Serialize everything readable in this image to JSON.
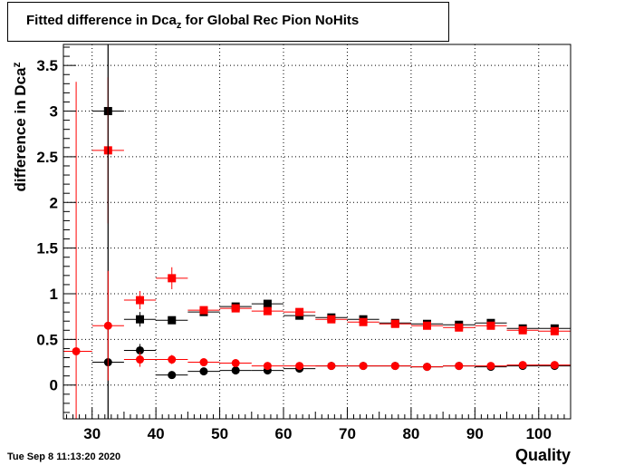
{
  "chart_data": {
    "type": "scatter",
    "title": "Fitted difference in Dca",
    "title_sub": "z",
    "title_suffix": " for Global Rec Pion NoHits",
    "xlabel": "Quality",
    "ylabel": "difference in Dca",
    "ylabel_sub": "z",
    "xlim": [
      25.5,
      105
    ],
    "ylim": [
      -0.37,
      3.73
    ],
    "x_ticks": [
      30,
      40,
      50,
      60,
      70,
      80,
      90,
      100
    ],
    "y_ticks": [
      0,
      0.5,
      1,
      1.5,
      2,
      2.5,
      3,
      3.5
    ],
    "y_tick_labels": [
      "0",
      "0.5",
      "1",
      "1.5",
      "2",
      "2.5",
      "3",
      "3.5"
    ],
    "grid": true,
    "series": [
      {
        "marker": "square",
        "color": "#000000",
        "points": [
          {
            "x": 32.5,
            "y": 3.0,
            "err": 4.0
          },
          {
            "x": 37.5,
            "y": 0.72,
            "err": 0.08
          },
          {
            "x": 42.5,
            "y": 0.71,
            "err": 0.03
          },
          {
            "x": 47.5,
            "y": 0.8,
            "err": 0.02
          },
          {
            "x": 52.5,
            "y": 0.86,
            "err": 0.02
          },
          {
            "x": 57.5,
            "y": 0.89,
            "err": 0.02
          },
          {
            "x": 62.5,
            "y": 0.76,
            "err": 0.01
          },
          {
            "x": 67.5,
            "y": 0.74,
            "err": 0.01
          },
          {
            "x": 72.5,
            "y": 0.72,
            "err": 0.01
          },
          {
            "x": 77.5,
            "y": 0.68,
            "err": 0.01
          },
          {
            "x": 82.5,
            "y": 0.67,
            "err": 0.01
          },
          {
            "x": 87.5,
            "y": 0.66,
            "err": 0.01
          },
          {
            "x": 92.5,
            "y": 0.68,
            "err": 0.01
          },
          {
            "x": 97.5,
            "y": 0.62,
            "err": 0.01
          },
          {
            "x": 102.5,
            "y": 0.62,
            "err": 0.01
          }
        ]
      },
      {
        "marker": "square",
        "color": "#ff0000",
        "points": [
          {
            "x": 32.5,
            "y": 2.57,
            "err": 0.8
          },
          {
            "x": 37.5,
            "y": 0.93,
            "err": 0.1
          },
          {
            "x": 42.5,
            "y": 1.17,
            "err": 0.12
          },
          {
            "x": 47.5,
            "y": 0.82,
            "err": 0.03
          },
          {
            "x": 52.5,
            "y": 0.84,
            "err": 0.02
          },
          {
            "x": 57.5,
            "y": 0.81,
            "err": 0.02
          },
          {
            "x": 62.5,
            "y": 0.8,
            "err": 0.01
          },
          {
            "x": 67.5,
            "y": 0.72,
            "err": 0.01
          },
          {
            "x": 72.5,
            "y": 0.69,
            "err": 0.01
          },
          {
            "x": 77.5,
            "y": 0.67,
            "err": 0.01
          },
          {
            "x": 82.5,
            "y": 0.65,
            "err": 0.01
          },
          {
            "x": 87.5,
            "y": 0.63,
            "err": 0.01
          },
          {
            "x": 92.5,
            "y": 0.65,
            "err": 0.01
          },
          {
            "x": 97.5,
            "y": 0.6,
            "err": 0.01
          },
          {
            "x": 102.5,
            "y": 0.59,
            "err": 0.01
          }
        ]
      },
      {
        "marker": "circle",
        "color": "#000000",
        "points": [
          {
            "x": 32.5,
            "y": 0.25,
            "err": 4.0
          },
          {
            "x": 37.5,
            "y": 0.38,
            "err": 0.07
          },
          {
            "x": 42.5,
            "y": 0.11,
            "err": 0.03
          },
          {
            "x": 47.5,
            "y": 0.15,
            "err": 0.02
          },
          {
            "x": 52.5,
            "y": 0.16,
            "err": 0.01
          },
          {
            "x": 57.5,
            "y": 0.16,
            "err": 0.01
          },
          {
            "x": 62.5,
            "y": 0.18,
            "err": 0.01
          },
          {
            "x": 67.5,
            "y": 0.21,
            "err": 0.01
          },
          {
            "x": 72.5,
            "y": 0.21,
            "err": 0.01
          },
          {
            "x": 77.5,
            "y": 0.21,
            "err": 0.01
          },
          {
            "x": 82.5,
            "y": 0.2,
            "err": 0.01
          },
          {
            "x": 87.5,
            "y": 0.21,
            "err": 0.01
          },
          {
            "x": 92.5,
            "y": 0.2,
            "err": 0.01
          },
          {
            "x": 97.5,
            "y": 0.21,
            "err": 0.01
          },
          {
            "x": 102.5,
            "y": 0.21,
            "err": 0.01
          }
        ]
      },
      {
        "marker": "circle",
        "color": "#ff0000",
        "points": [
          {
            "x": 27.5,
            "y": 0.37,
            "err": 2.95
          },
          {
            "x": 32.5,
            "y": 0.65,
            "err": 0.6
          },
          {
            "x": 37.5,
            "y": 0.28,
            "err": 0.08
          },
          {
            "x": 42.5,
            "y": 0.28,
            "err": 0.05
          },
          {
            "x": 47.5,
            "y": 0.25,
            "err": 0.02
          },
          {
            "x": 52.5,
            "y": 0.24,
            "err": 0.01
          },
          {
            "x": 57.5,
            "y": 0.21,
            "err": 0.01
          },
          {
            "x": 62.5,
            "y": 0.21,
            "err": 0.01
          },
          {
            "x": 67.5,
            "y": 0.21,
            "err": 0.01
          },
          {
            "x": 72.5,
            "y": 0.21,
            "err": 0.01
          },
          {
            "x": 77.5,
            "y": 0.21,
            "err": 0.01
          },
          {
            "x": 82.5,
            "y": 0.2,
            "err": 0.01
          },
          {
            "x": 87.5,
            "y": 0.21,
            "err": 0.01
          },
          {
            "x": 92.5,
            "y": 0.21,
            "err": 0.01
          },
          {
            "x": 97.5,
            "y": 0.22,
            "err": 0.01
          },
          {
            "x": 102.5,
            "y": 0.22,
            "err": 0.01
          }
        ]
      }
    ]
  },
  "footer": {
    "timestamp": "Tue Sep  8 11:13:20 2020"
  }
}
